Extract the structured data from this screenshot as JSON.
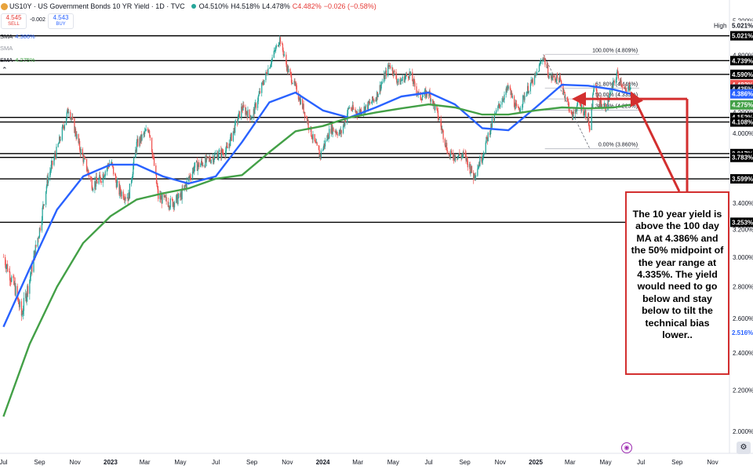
{
  "header": {
    "symbol": "US10Y",
    "title": "US10Y · US Government Bonds 10 YR Yield · 1D · TVC",
    "open": "O4.510%",
    "high": "H4.518%",
    "low": "L4.478%",
    "close": "C4.482%",
    "change": "−0.026 (−0.58%)"
  },
  "trade": {
    "sell_value": "4.545",
    "sell_label": "SELL",
    "spread": "-0.002",
    "buy_value": "4.543",
    "buy_label": "BUY"
  },
  "indicators": [
    {
      "label": "SMA",
      "value": "4.386%",
      "color": "#2962ff"
    },
    {
      "label": "SMA",
      "value": "",
      "color": "#9598a1"
    },
    {
      "label": "SMA",
      "value": "4.275%",
      "color": "#43a047"
    }
  ],
  "collapse_icon": "chevron-up-icon",
  "annotation": "The 10 year yield is above the 100 day MA at 4.386% and the 50% midpoint of the year range at 4.335%.  The yield would need to go below and stay below to tilt the technical bias lower..",
  "colors": {
    "accent_red": "#d32f2f",
    "sma100": "#2962ff",
    "sma200": "#43a047",
    "candle_up": "#26a69a",
    "candle_down": "#ef5350"
  },
  "chart_data": {
    "type": "line",
    "series": [
      {
        "name": "US10Y",
        "x": [
          "2022-07-01",
          "2022-07-20",
          "2022-08-01",
          "2022-08-15",
          "2022-09-01",
          "2022-09-15",
          "2022-10-01",
          "2022-10-21",
          "2022-11-10",
          "2022-12-01",
          "2022-12-15",
          "2023-01-01",
          "2023-01-15",
          "2023-02-01",
          "2023-02-15",
          "2023-03-08",
          "2023-03-24",
          "2023-04-15",
          "2023-05-01",
          "2023-05-25",
          "2023-06-15",
          "2023-07-01",
          "2023-07-20",
          "2023-08-15",
          "2023-09-01",
          "2023-09-20",
          "2023-10-05",
          "2023-10-19",
          "2023-11-01",
          "2023-11-15",
          "2023-12-01",
          "2023-12-15",
          "2023-12-27",
          "2024-01-15",
          "2024-02-01",
          "2024-02-15",
          "2024-03-01",
          "2024-03-15",
          "2024-04-01",
          "2024-04-25",
          "2024-05-10",
          "2024-05-29",
          "2024-06-15",
          "2024-07-01",
          "2024-07-15",
          "2024-08-05",
          "2024-08-20",
          "2024-09-01",
          "2024-09-16",
          "2024-10-01",
          "2024-10-15",
          "2024-11-01",
          "2024-11-15",
          "2024-12-01",
          "2024-12-15",
          "2025-01-01",
          "2025-01-14",
          "2025-01-25",
          "2025-02-10",
          "2025-02-25",
          "2025-03-04",
          "2025-03-15",
          "2025-04-01",
          "2025-04-04",
          "2025-04-11",
          "2025-04-20",
          "2025-05-01",
          "2025-05-21",
          "2025-06-05",
          "2025-06-13"
        ],
        "values": [
          3.0,
          2.8,
          2.62,
          2.85,
          3.2,
          3.6,
          3.85,
          4.24,
          3.85,
          3.55,
          3.6,
          3.75,
          3.5,
          3.45,
          3.9,
          4.05,
          3.45,
          3.4,
          3.45,
          3.7,
          3.75,
          3.8,
          3.85,
          4.25,
          4.15,
          4.5,
          4.75,
          4.99,
          4.65,
          4.45,
          4.2,
          3.95,
          3.8,
          4.05,
          4.0,
          4.25,
          4.2,
          4.25,
          4.35,
          4.7,
          4.5,
          4.6,
          4.35,
          4.4,
          4.2,
          3.8,
          3.8,
          3.8,
          3.62,
          3.8,
          4.05,
          4.3,
          4.45,
          4.2,
          4.4,
          4.57,
          4.79,
          4.55,
          4.55,
          4.3,
          4.15,
          4.3,
          4.15,
          4.0,
          4.49,
          4.3,
          4.25,
          4.6,
          4.4,
          4.482
        ]
      },
      {
        "name": "",
        "x": [
          "2022-07-01",
          "2022-08-15",
          "2022-10-01",
          "2022-11-15",
          "2023-01-01",
          "2023-02-15",
          "2023-04-01",
          "2023-05-15",
          "2023-07-01",
          "2023-08-15",
          "2023-10-01",
          "2023-11-15",
          "2024-01-01",
          "2024-02-15",
          "2024-04-01",
          "2024-05-15",
          "2024-07-01",
          "2024-08-15",
          "2024-10-01",
          "2024-11-15",
          "2025-01-01",
          "2025-02-15",
          "2025-04-01",
          "2025-05-15",
          "2025-06-13"
        ],
        "values": [
          2.55,
          2.92,
          3.35,
          3.62,
          3.72,
          3.72,
          3.62,
          3.56,
          3.62,
          3.92,
          4.3,
          4.4,
          4.22,
          4.15,
          4.25,
          4.36,
          4.4,
          4.28,
          4.05,
          4.03,
          4.25,
          4.48,
          4.47,
          4.43,
          4.386
        ]
      },
      {
        "name": "",
        "x": [
          "2022-07-01",
          "2022-08-15",
          "2022-10-01",
          "2022-11-15",
          "2023-01-01",
          "2023-02-15",
          "2023-04-01",
          "2023-05-15",
          "2023-07-01",
          "2023-08-15",
          "2023-10-01",
          "2023-11-15",
          "2024-01-01",
          "2024-02-15",
          "2024-04-01",
          "2024-05-15",
          "2024-07-01",
          "2024-08-15",
          "2024-10-01",
          "2024-11-15",
          "2025-01-01",
          "2025-02-15",
          "2025-04-01",
          "2025-05-15",
          "2025-06-13"
        ],
        "values": [
          2.07,
          2.45,
          2.8,
          3.1,
          3.3,
          3.43,
          3.48,
          3.52,
          3.6,
          3.63,
          3.83,
          4.02,
          4.07,
          4.15,
          4.2,
          4.24,
          4.28,
          4.25,
          4.18,
          4.18,
          4.22,
          4.25,
          4.24,
          4.25,
          4.275
        ]
      }
    ],
    "ylim": [
      1.9,
      5.3
    ],
    "xlim": [
      "2022-06-25",
      "2025-11-30"
    ],
    "y_scale": "log",
    "y_ticks": [
      "2.000%",
      "2.200%",
      "2.400%",
      "2.600%",
      "2.800%",
      "3.000%",
      "3.200%",
      "3.400%",
      "3.600%",
      "3.800%",
      "4.000%",
      "4.200%",
      "4.400%",
      "4.600%",
      "4.800%",
      "5.000%",
      "5.200%"
    ],
    "y_tick_values": [
      2.0,
      2.2,
      2.4,
      2.6,
      2.8,
      3.0,
      3.2,
      3.4,
      3.6,
      3.8,
      4.0,
      4.2,
      4.4,
      4.6,
      4.8,
      5.0,
      5.2
    ],
    "x_ticks": [
      {
        "label": "Jul",
        "date": "2022-07-01",
        "bold": false
      },
      {
        "label": "Sep",
        "date": "2022-09-01",
        "bold": false
      },
      {
        "label": "Nov",
        "date": "2022-11-01",
        "bold": false
      },
      {
        "label": "2023",
        "date": "2023-01-01",
        "bold": true
      },
      {
        "label": "Mar",
        "date": "2023-03-01",
        "bold": false
      },
      {
        "label": "May",
        "date": "2023-05-01",
        "bold": false
      },
      {
        "label": "Jul",
        "date": "2023-07-01",
        "bold": false
      },
      {
        "label": "Sep",
        "date": "2023-09-01",
        "bold": false
      },
      {
        "label": "Nov",
        "date": "2023-11-01",
        "bold": false
      },
      {
        "label": "2024",
        "date": "2024-01-01",
        "bold": true
      },
      {
        "label": "Mar",
        "date": "2024-03-01",
        "bold": false
      },
      {
        "label": "May",
        "date": "2024-05-01",
        "bold": false
      },
      {
        "label": "Jul",
        "date": "2024-07-01",
        "bold": false
      },
      {
        "label": "Sep",
        "date": "2024-09-01",
        "bold": false
      },
      {
        "label": "Nov",
        "date": "2024-11-01",
        "bold": false
      },
      {
        "label": "2025",
        "date": "2025-01-01",
        "bold": true
      },
      {
        "label": "Mar",
        "date": "2025-03-01",
        "bold": false
      },
      {
        "label": "May",
        "date": "2025-05-01",
        "bold": false
      },
      {
        "label": "Jul",
        "date": "2025-07-01",
        "bold": false
      },
      {
        "label": "Sep",
        "date": "2025-09-01",
        "bold": false
      },
      {
        "label": "Nov",
        "date": "2025-11-01",
        "bold": false
      }
    ],
    "horizontal_levels": [
      {
        "value": 5.021,
        "label": "5.021%"
      },
      {
        "value": 4.739,
        "label": "4.739%"
      },
      {
        "value": 4.59,
        "label": "4.590%"
      },
      {
        "value": 4.152,
        "label": "4.152%"
      },
      {
        "value": 4.108,
        "label": "4.108%"
      },
      {
        "value": 3.817,
        "label": "3.817%"
      },
      {
        "value": 3.783,
        "label": "3.783%"
      },
      {
        "value": 3.599,
        "label": "3.599%"
      },
      {
        "value": 3.253,
        "label": "3.253%"
      }
    ],
    "price_tags": [
      {
        "value": 5.021,
        "label": "5.021%",
        "caption": "High",
        "style": "high"
      },
      {
        "value": 4.482,
        "label": "4.482%",
        "style": "last"
      },
      {
        "value": 4.435,
        "label": "4.435%",
        "style": "dark"
      },
      {
        "value": 4.386,
        "label": "4.386%",
        "style": "sma100"
      },
      {
        "value": 4.275,
        "label": "4.275%",
        "style": "sma200"
      },
      {
        "value": 2.516,
        "label": "2.516%",
        "style": "blue-text"
      }
    ],
    "fibonacci": {
      "from_date": "2025-01-14",
      "to_date": "2025-04-04",
      "right_date": "2025-06-28",
      "levels": [
        {
          "value": 4.809,
          "label": "100.00% (4.809%)"
        },
        {
          "value": 4.446,
          "label": "61.80% (4.446%)"
        },
        {
          "value": 4.335,
          "label": "50.00% (4.335%)"
        },
        {
          "value": 4.223,
          "label": "38.20% (4.223%)"
        },
        {
          "value": 3.86,
          "label": "0.00% (3.860%)"
        }
      ]
    },
    "grid": false
  }
}
